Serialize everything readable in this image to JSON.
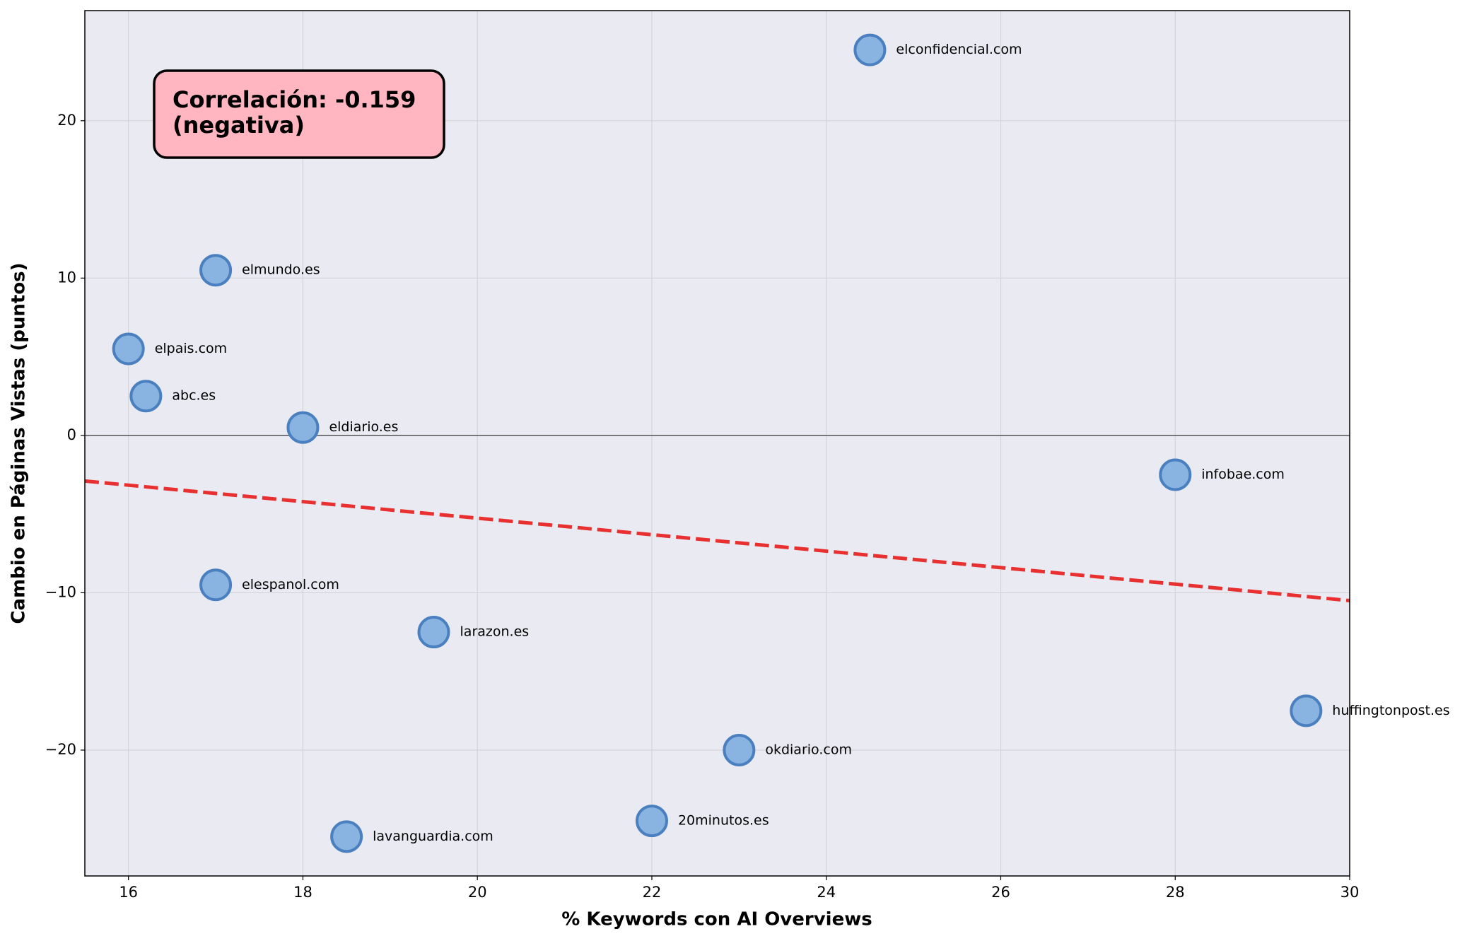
{
  "chart_data": {
    "type": "scatter",
    "xlabel": "% Keywords con AI Overviews",
    "ylabel": "Cambio en Páginas Vistas (puntos)",
    "x": [
      24.5,
      17,
      16,
      16.2,
      18,
      28,
      17,
      19.5,
      29.5,
      23,
      22,
      18.5
    ],
    "values": [
      24.5,
      10.5,
      5.5,
      2.5,
      0.5,
      -2.5,
      -9.5,
      -12.5,
      -17.5,
      -20,
      -24.5,
      -25.5
    ],
    "point_labels": [
      "elconfidencial.com",
      "elmundo.es",
      "elpais.com",
      "abc.es",
      "eldiario.es",
      "infobae.com",
      "elespanol.com",
      "larazon.es",
      "huffingtonpost.es",
      "okdiario.com",
      "20minutos.es",
      "lavanguardia.com"
    ],
    "color": "#89b3e0",
    "edge_color": "#4a80c0",
    "trend_line": {
      "x": [
        15.5,
        30
      ],
      "y": [
        -2.9,
        -10.5
      ],
      "color": "#e83030"
    },
    "reference_line_y": 0,
    "annotation": [
      "Correlación: -0.159",
      "(negativa)"
    ],
    "xlim": [
      15.5,
      30
    ],
    "ylim": [
      -28,
      27
    ],
    "xticks": [
      16,
      18,
      20,
      22,
      24,
      26,
      28,
      30
    ],
    "yticks": [
      {
        "value": -20,
        "label": "−20"
      },
      {
        "value": -10,
        "label": "−10"
      },
      0,
      10,
      20
    ],
    "grid": true
  }
}
